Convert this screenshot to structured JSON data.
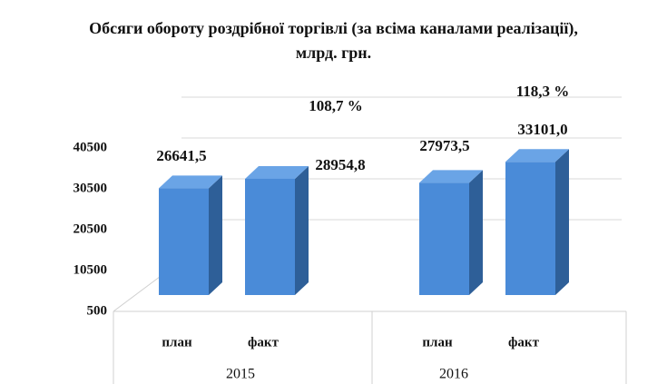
{
  "chart_data": {
    "type": "bar3d",
    "title": "Обсяги обороту роздрібної торгівлі (за всіма каналами реалізації), млрд. грн.",
    "categories": [
      "план",
      "факт",
      "план",
      "факт"
    ],
    "groups": [
      "2015",
      "2016"
    ],
    "values": [
      26641.5,
      28954.8,
      27973.5,
      33101.0
    ],
    "value_labels": [
      "26641,5",
      "28954,8",
      "27973,5",
      "33101,0"
    ],
    "annotations": [
      "108,7 %",
      "118,3 %"
    ],
    "color": "#4a8bd8",
    "ylim": [
      500,
      40500
    ],
    "yticks": [
      500,
      10500,
      20500,
      30500,
      40500
    ],
    "grid": true
  }
}
